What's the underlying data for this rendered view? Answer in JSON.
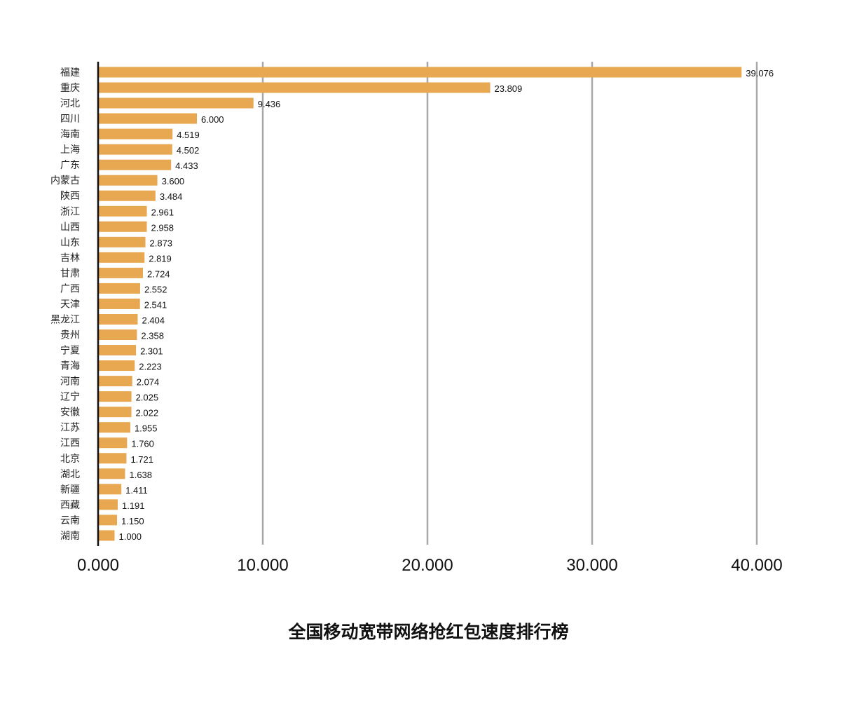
{
  "chart_data": {
    "type": "bar",
    "orientation": "horizontal",
    "title": "全国移动宽带网络抢红包速度排行榜",
    "categories": [
      "福建",
      "重庆",
      "河北",
      "四川",
      "海南",
      "上海",
      "广东",
      "内蒙古",
      "陕西",
      "浙江",
      "山西",
      "山东",
      "吉林",
      "甘肃",
      "广西",
      "天津",
      "黑龙江",
      "贵州",
      "宁夏",
      "青海",
      "河南",
      "辽宁",
      "安徽",
      "江苏",
      "江西",
      "北京",
      "湖北",
      "新疆",
      "西藏",
      "云南",
      "湖南"
    ],
    "values": [
      39.076,
      23.809,
      9.436,
      6.0,
      4.519,
      4.502,
      4.433,
      3.6,
      3.484,
      2.961,
      2.958,
      2.873,
      2.819,
      2.724,
      2.552,
      2.541,
      2.404,
      2.358,
      2.301,
      2.223,
      2.074,
      2.025,
      2.022,
      1.955,
      1.76,
      1.721,
      1.638,
      1.411,
      1.191,
      1.15,
      1.0
    ],
    "xlim": [
      0,
      40
    ],
    "xticks": [
      "0.000",
      "10.000",
      "20.000",
      "30.000",
      "40.000"
    ],
    "xtick_values": [
      0,
      10,
      20,
      30,
      40
    ],
    "xlabel": "",
    "ylabel": "",
    "grid": "vertical",
    "legend": "none",
    "bar_color": "#E8A851",
    "grid_color": "#A8A8A8"
  }
}
